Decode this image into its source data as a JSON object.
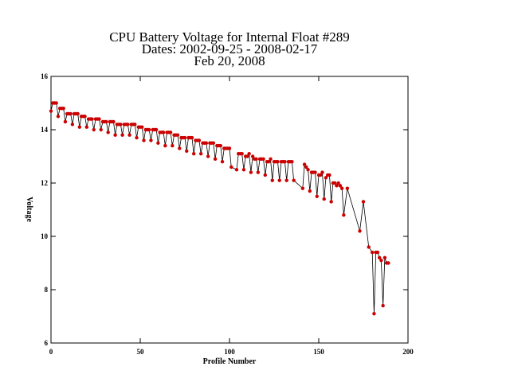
{
  "chart_data": {
    "type": "line",
    "title": [
      "CPU Battery Voltage for Internal Float #289",
      "Dates:  2002-09-25 -  2008-02-17",
      "Feb 20, 2008"
    ],
    "x_label": "Profile Number",
    "y_label": "Voltage",
    "xlim": [
      0,
      200
    ],
    "xticks": [
      0,
      50,
      100,
      150,
      200
    ],
    "ylim": [
      6,
      16
    ],
    "yticks": [
      6,
      8,
      10,
      12,
      14,
      16
    ],
    "line_color": "#000000",
    "marker_color": "#cc0000",
    "x": [
      0,
      1,
      2,
      3,
      4,
      5,
      6,
      7,
      8,
      9,
      10,
      11,
      12,
      13,
      14,
      15,
      16,
      17,
      18,
      19,
      20,
      21,
      22,
      23,
      24,
      25,
      26,
      27,
      28,
      29,
      30,
      31,
      32,
      33,
      34,
      35,
      36,
      37,
      38,
      39,
      40,
      41,
      42,
      43,
      44,
      45,
      46,
      47,
      48,
      49,
      50,
      51,
      52,
      53,
      54,
      55,
      56,
      57,
      58,
      59,
      60,
      61,
      62,
      63,
      64,
      65,
      66,
      67,
      68,
      69,
      70,
      71,
      72,
      73,
      74,
      75,
      76,
      77,
      78,
      79,
      80,
      81,
      82,
      83,
      84,
      85,
      86,
      87,
      88,
      89,
      90,
      91,
      92,
      93,
      94,
      95,
      96,
      97,
      98,
      99,
      100,
      101,
      104,
      105,
      106,
      107,
      108,
      109,
      110,
      111,
      112,
      113,
      114,
      115,
      116,
      117,
      118,
      119,
      120,
      121,
      122,
      123,
      124,
      125,
      126,
      127,
      128,
      129,
      130,
      131,
      132,
      133,
      134,
      135,
      136,
      141,
      142,
      143,
      144,
      145,
      146,
      147,
      148,
      149,
      150,
      151,
      152,
      153,
      154,
      155,
      156,
      157,
      158,
      159,
      160,
      161,
      162,
      163,
      164,
      166,
      173,
      175,
      178,
      180,
      181,
      182,
      183,
      184,
      185,
      186,
      187,
      188,
      189
    ],
    "values": [
      14.7,
      15.0,
      15.0,
      15.0,
      14.5,
      14.8,
      14.8,
      14.8,
      14.3,
      14.6,
      14.6,
      14.6,
      14.2,
      14.6,
      14.6,
      14.6,
      14.1,
      14.5,
      14.5,
      14.5,
      14.1,
      14.4,
      14.4,
      14.4,
      14.0,
      14.4,
      14.4,
      14.4,
      14.0,
      14.3,
      14.3,
      14.3,
      13.9,
      14.3,
      14.3,
      14.3,
      13.8,
      14.2,
      14.2,
      14.2,
      13.8,
      14.2,
      14.2,
      14.2,
      13.8,
      14.2,
      14.2,
      14.2,
      13.7,
      14.1,
      14.1,
      14.1,
      13.6,
      14.0,
      14.0,
      14.0,
      13.6,
      14.0,
      14.0,
      14.0,
      13.5,
      13.9,
      13.9,
      13.9,
      13.4,
      13.9,
      13.9,
      13.9,
      13.4,
      13.8,
      13.8,
      13.8,
      13.3,
      13.7,
      13.7,
      13.7,
      13.2,
      13.7,
      13.7,
      13.7,
      13.1,
      13.6,
      13.6,
      13.6,
      13.1,
      13.5,
      13.5,
      13.5,
      13.0,
      13.5,
      13.5,
      13.5,
      12.9,
      13.4,
      13.4,
      13.4,
      12.8,
      13.3,
      13.3,
      13.3,
      13.3,
      12.6,
      12.5,
      13.1,
      13.1,
      13.1,
      12.5,
      13.0,
      13.0,
      13.1,
      12.4,
      13.0,
      12.9,
      12.9,
      12.4,
      12.9,
      12.9,
      12.9,
      12.3,
      12.8,
      12.8,
      12.9,
      12.1,
      12.8,
      12.8,
      12.8,
      12.1,
      12.8,
      12.8,
      12.8,
      12.1,
      12.8,
      12.8,
      12.8,
      12.1,
      11.8,
      12.7,
      12.6,
      12.5,
      11.7,
      12.4,
      12.4,
      12.4,
      11.5,
      12.3,
      12.3,
      12.4,
      11.4,
      12.2,
      12.3,
      12.3,
      11.3,
      12.0,
      12.0,
      11.9,
      12.0,
      11.9,
      11.8,
      10.8,
      11.8,
      10.2,
      11.3,
      9.6,
      9.4,
      7.1,
      9.4,
      9.4,
      9.2,
      9.1,
      7.4,
      9.2,
      9.0,
      9.0
    ]
  }
}
